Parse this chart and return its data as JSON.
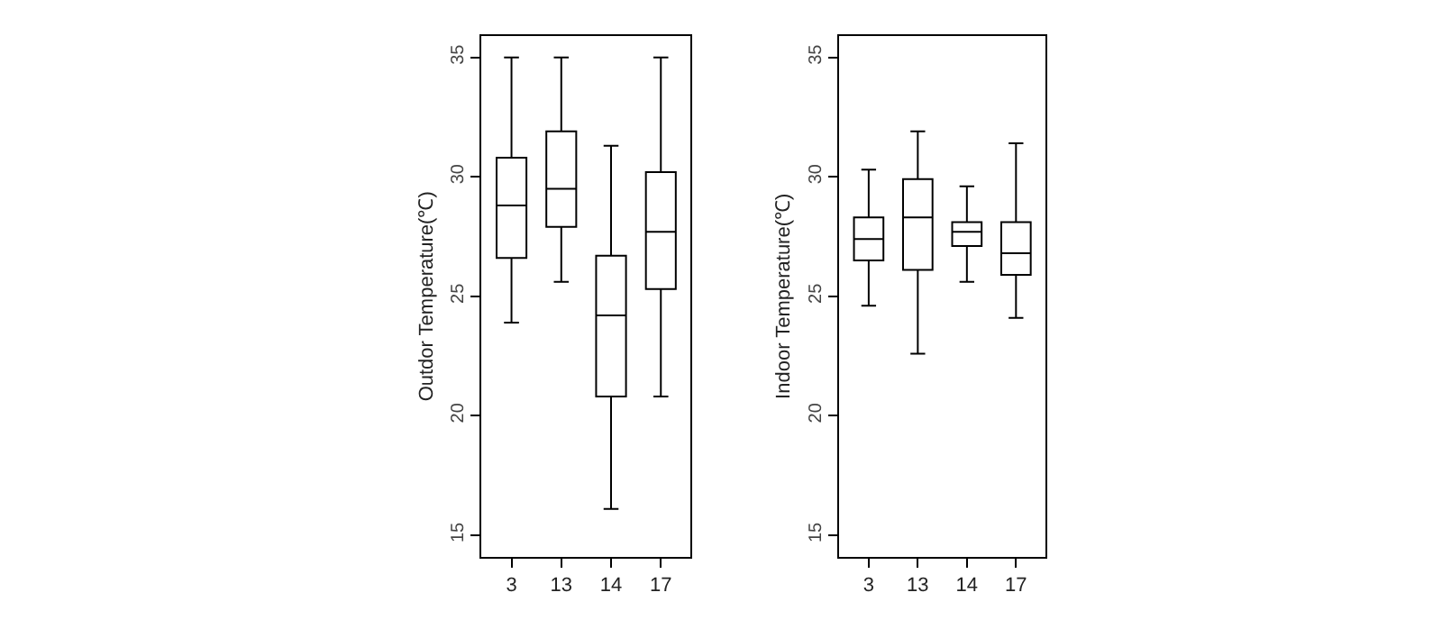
{
  "chart_data": [
    {
      "type": "box",
      "ylabel": "Outdor Temperature(℃)",
      "categories": [
        "3",
        "13",
        "14",
        "17"
      ],
      "ylim": [
        14.1,
        35.9
      ],
      "yticks": [
        15,
        20,
        25,
        30,
        35
      ],
      "boxes": [
        {
          "low": 23.9,
          "q1": 26.6,
          "median": 28.8,
          "q3": 30.8,
          "high": 35
        },
        {
          "low": 25.6,
          "q1": 27.9,
          "median": 29.5,
          "q3": 31.9,
          "high": 35
        },
        {
          "low": 16.1,
          "q1": 20.8,
          "median": 24.2,
          "q3": 26.7,
          "high": 31.3
        },
        {
          "low": 20.8,
          "q1": 25.3,
          "median": 27.7,
          "q3": 30.2,
          "high": 35
        }
      ]
    },
    {
      "type": "box",
      "ylabel": "Indoor Temperature(℃)",
      "categories": [
        "3",
        "13",
        "14",
        "17"
      ],
      "ylim": [
        14.1,
        35.9
      ],
      "yticks": [
        15,
        20,
        25,
        30,
        35
      ],
      "boxes": [
        {
          "low": 24.6,
          "q1": 26.5,
          "median": 27.4,
          "q3": 28.3,
          "high": 30.3
        },
        {
          "low": 22.6,
          "q1": 26.1,
          "median": 28.3,
          "q3": 29.9,
          "high": 31.9
        },
        {
          "low": 25.6,
          "q1": 27.1,
          "median": 27.7,
          "q3": 28.1,
          "high": 29.6
        },
        {
          "low": 24.1,
          "q1": 25.9,
          "median": 26.8,
          "q3": 28.1,
          "high": 31.4
        }
      ]
    }
  ]
}
